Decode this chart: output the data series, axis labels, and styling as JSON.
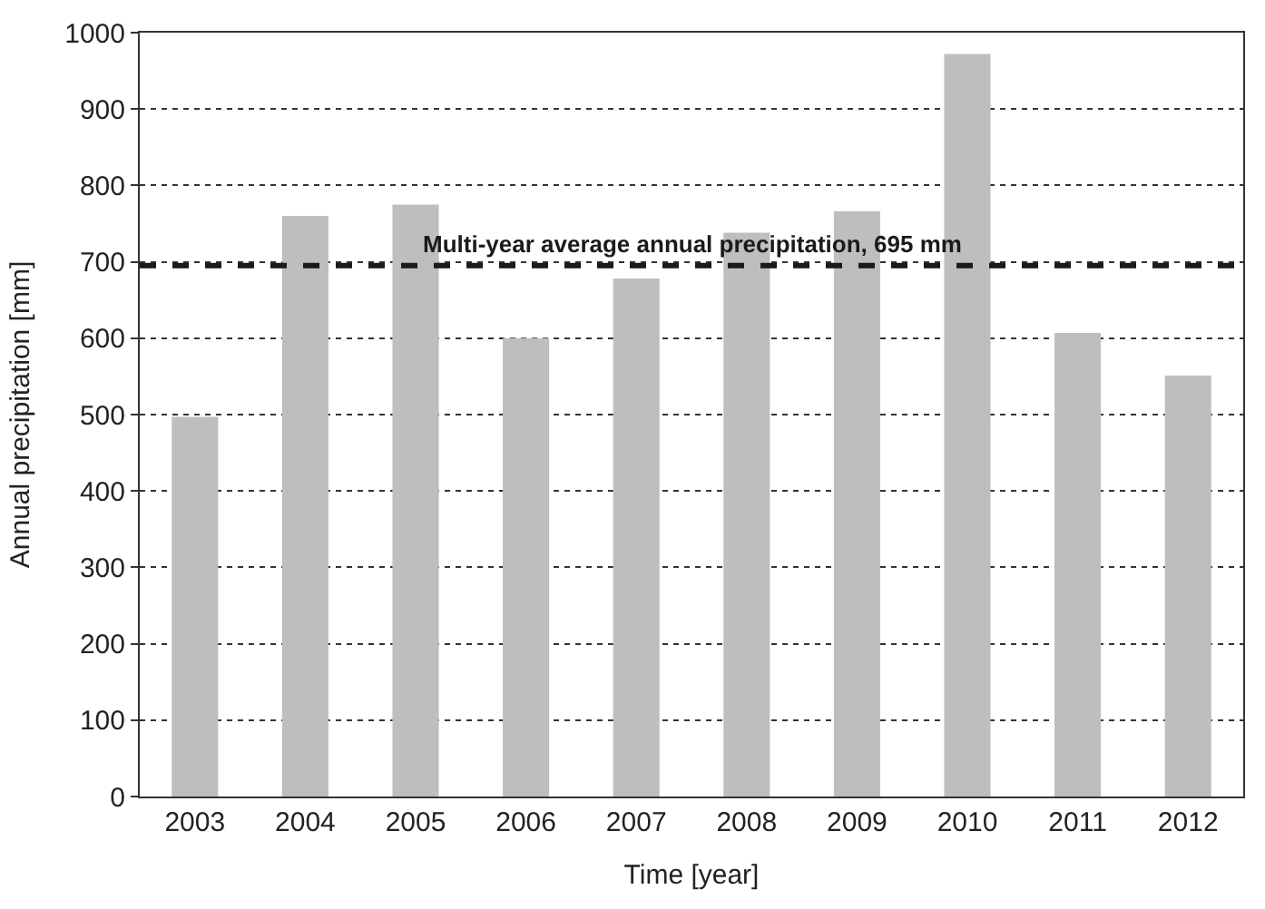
{
  "chart_data": {
    "type": "bar",
    "xlabel": "Time [year]",
    "ylabel": "Annual precipitation [mm]",
    "categories": [
      "2003",
      "2004",
      "2005",
      "2006",
      "2007",
      "2008",
      "2009",
      "2010",
      "2011",
      "2012"
    ],
    "values": [
      497,
      760,
      775,
      600,
      678,
      738,
      766,
      972,
      607,
      551
    ],
    "color": "#bcbec0",
    "ylim": [
      0,
      1000
    ],
    "yticks": [
      0,
      100,
      200,
      300,
      400,
      500,
      600,
      700,
      800,
      900,
      1000
    ],
    "grid": "y",
    "ref_lines": [
      {
        "axis": "y",
        "value": 695,
        "label": "Multi-year average annual precipitation, 695 mm",
        "color": "#1a1a1a",
        "line_style": "dashed"
      }
    ]
  }
}
